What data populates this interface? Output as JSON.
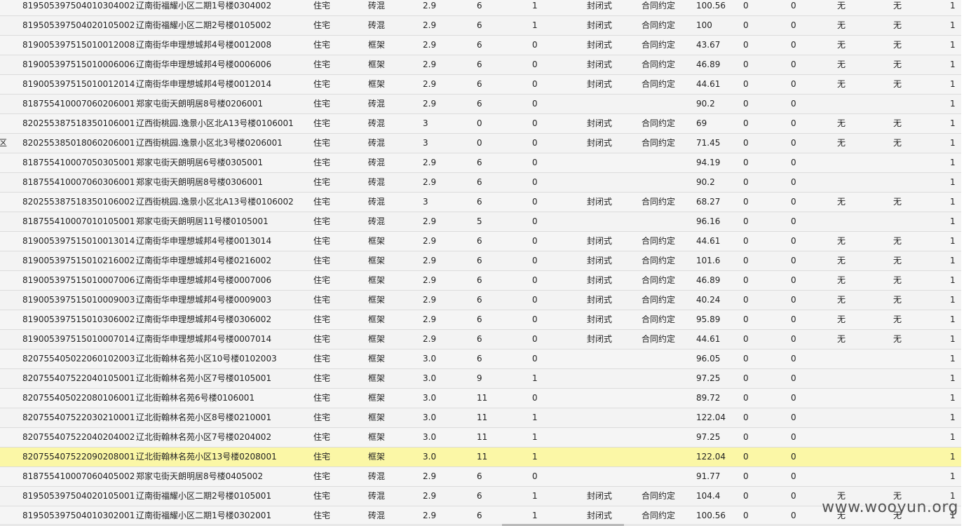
{
  "rows": [
    {
      "edge": "",
      "code": "81950539750401030400​2",
      "addr": "辽南街福耀小区二期1号楼0304002",
      "use": "住宅",
      "struct": "砖混",
      "height": "2.9",
      "floors": "6",
      "flag1": "1",
      "type": "封闭式",
      "term": "合同约定",
      "area": "100.56",
      "z1": "0",
      "z2": "0",
      "n1": "无",
      "n2": "无",
      "last": "1"
    },
    {
      "edge": "",
      "code": "819505397504020105002",
      "addr": "辽南街福耀小区二期2号楼0105002",
      "use": "住宅",
      "struct": "砖混",
      "height": "2.9",
      "floors": "6",
      "flag1": "1",
      "type": "封闭式",
      "term": "合同约定",
      "area": "100",
      "z1": "0",
      "z2": "0",
      "n1": "无",
      "n2": "无",
      "last": "1"
    },
    {
      "edge": "",
      "code": "819005397515010012008",
      "addr": "辽南街华申理想城邦4号楼0012008",
      "use": "住宅",
      "struct": "框架",
      "height": "2.9",
      "floors": "6",
      "flag1": "0",
      "type": "封闭式",
      "term": "合同约定",
      "area": "43.67",
      "z1": "0",
      "z2": "0",
      "n1": "无",
      "n2": "无",
      "last": "1"
    },
    {
      "edge": "",
      "code": "819005397515010006006",
      "addr": "辽南街华申理想城邦4号楼0006006",
      "use": "住宅",
      "struct": "框架",
      "height": "2.9",
      "floors": "6",
      "flag1": "0",
      "type": "封闭式",
      "term": "合同约定",
      "area": "46.89",
      "z1": "0",
      "z2": "0",
      "n1": "无",
      "n2": "无",
      "last": "1"
    },
    {
      "edge": "",
      "code": "819005397515010012014",
      "addr": "辽南街华申理想城邦4号楼0012014",
      "use": "住宅",
      "struct": "框架",
      "height": "2.9",
      "floors": "6",
      "flag1": "0",
      "type": "封闭式",
      "term": "合同约定",
      "area": "44.61",
      "z1": "0",
      "z2": "0",
      "n1": "无",
      "n2": "无",
      "last": "1"
    },
    {
      "edge": "",
      "code": "818755410007060206001",
      "addr": "郑家屯街天朗明居8号楼0206001",
      "use": "住宅",
      "struct": "砖混",
      "height": "2.9",
      "floors": "6",
      "flag1": "0",
      "type": "",
      "term": "",
      "area": "90.2",
      "z1": "0",
      "z2": "0",
      "n1": "",
      "n2": "",
      "last": "1"
    },
    {
      "edge": "",
      "code": "820255387518350106001",
      "addr": "辽西街桃园.逸景小区北A13号楼0106001",
      "use": "住宅",
      "struct": "砖混",
      "height": "3",
      "floors": "0",
      "flag1": "0",
      "type": "封闭式",
      "term": "合同约定",
      "area": "69",
      "z1": "0",
      "z2": "0",
      "n1": "无",
      "n2": "无",
      "last": "1"
    },
    {
      "edge": "区",
      "code": "820255385018060206001",
      "addr": "辽西街桃园.逸景小区北3号楼0206001",
      "use": "住宅",
      "struct": "砖混",
      "height": "3",
      "floors": "0",
      "flag1": "0",
      "type": "封闭式",
      "term": "合同约定",
      "area": "71.45",
      "z1": "0",
      "z2": "0",
      "n1": "无",
      "n2": "无",
      "last": "1"
    },
    {
      "edge": "",
      "code": "818755410007050305001",
      "addr": "郑家屯街天朗明居6号楼0305001",
      "use": "住宅",
      "struct": "砖混",
      "height": "2.9",
      "floors": "6",
      "flag1": "0",
      "type": "",
      "term": "",
      "area": "94.19",
      "z1": "0",
      "z2": "0",
      "n1": "",
      "n2": "",
      "last": "1"
    },
    {
      "edge": "",
      "code": "818755410007060306001",
      "addr": "郑家屯街天朗明居8号楼0306001",
      "use": "住宅",
      "struct": "砖混",
      "height": "2.9",
      "floors": "6",
      "flag1": "0",
      "type": "",
      "term": "",
      "area": "90.2",
      "z1": "0",
      "z2": "0",
      "n1": "",
      "n2": "",
      "last": "1"
    },
    {
      "edge": "",
      "code": "820255387518350106002",
      "addr": "辽西街桃园.逸景小区北A13号楼0106002",
      "use": "住宅",
      "struct": "砖混",
      "height": "3",
      "floors": "6",
      "flag1": "0",
      "type": "封闭式",
      "term": "合同约定",
      "area": "68.27",
      "z1": "0",
      "z2": "0",
      "n1": "无",
      "n2": "无",
      "last": "1"
    },
    {
      "edge": "",
      "code": "818755410007010105001",
      "addr": "郑家屯街天朗明居11号楼0105001",
      "use": "住宅",
      "struct": "砖混",
      "height": "2.9",
      "floors": "5",
      "flag1": "0",
      "type": "",
      "term": "",
      "area": "96.16",
      "z1": "0",
      "z2": "0",
      "n1": "",
      "n2": "",
      "last": "1"
    },
    {
      "edge": "",
      "code": "819005397515010013014",
      "addr": "辽南街华申理想城邦4号楼0013014",
      "use": "住宅",
      "struct": "框架",
      "height": "2.9",
      "floors": "6",
      "flag1": "0",
      "type": "封闭式",
      "term": "合同约定",
      "area": "44.61",
      "z1": "0",
      "z2": "0",
      "n1": "无",
      "n2": "无",
      "last": "1"
    },
    {
      "edge": "",
      "code": "819005397515010216002",
      "addr": "辽南街华申理想城邦4号楼0216002",
      "use": "住宅",
      "struct": "框架",
      "height": "2.9",
      "floors": "6",
      "flag1": "0",
      "type": "封闭式",
      "term": "合同约定",
      "area": "101.6",
      "z1": "0",
      "z2": "0",
      "n1": "无",
      "n2": "无",
      "last": "1"
    },
    {
      "edge": "",
      "code": "819005397515010007006",
      "addr": "辽南街华申理想城邦4号楼0007006",
      "use": "住宅",
      "struct": "框架",
      "height": "2.9",
      "floors": "6",
      "flag1": "0",
      "type": "封闭式",
      "term": "合同约定",
      "area": "46.89",
      "z1": "0",
      "z2": "0",
      "n1": "无",
      "n2": "无",
      "last": "1"
    },
    {
      "edge": "",
      "code": "819005397515010009003",
      "addr": "辽南街华申理想城邦4号楼0009003",
      "use": "住宅",
      "struct": "框架",
      "height": "2.9",
      "floors": "6",
      "flag1": "0",
      "type": "封闭式",
      "term": "合同约定",
      "area": "40.24",
      "z1": "0",
      "z2": "0",
      "n1": "无",
      "n2": "无",
      "last": "1"
    },
    {
      "edge": "",
      "code": "819005397515010306002",
      "addr": "辽南街华申理想城邦4号楼0306002",
      "use": "住宅",
      "struct": "框架",
      "height": "2.9",
      "floors": "6",
      "flag1": "0",
      "type": "封闭式",
      "term": "合同约定",
      "area": "95.89",
      "z1": "0",
      "z2": "0",
      "n1": "无",
      "n2": "无",
      "last": "1"
    },
    {
      "edge": "",
      "code": "819005397515010007014",
      "addr": "辽南街华申理想城邦4号楼0007014",
      "use": "住宅",
      "struct": "框架",
      "height": "2.9",
      "floors": "6",
      "flag1": "0",
      "type": "封闭式",
      "term": "合同约定",
      "area": "44.61",
      "z1": "0",
      "z2": "0",
      "n1": "无",
      "n2": "无",
      "last": "1"
    },
    {
      "edge": "",
      "code": "820755405022060102003",
      "addr": "辽北街翰林名苑小区10号楼0102003",
      "use": "住宅",
      "struct": "框架",
      "height": "3.0",
      "floors": "6",
      "flag1": "0",
      "type": "",
      "term": "",
      "area": "96.05",
      "z1": "0",
      "z2": "0",
      "n1": "",
      "n2": "",
      "last": "1"
    },
    {
      "edge": "",
      "code": "820755407522040105001",
      "addr": "辽北街翰林名苑小区7号楼0105001",
      "use": "住宅",
      "struct": "框架",
      "height": "3.0",
      "floors": "9",
      "flag1": "1",
      "type": "",
      "term": "",
      "area": "97.25",
      "z1": "0",
      "z2": "0",
      "n1": "",
      "n2": "",
      "last": "1"
    },
    {
      "edge": "",
      "code": "820755405022080106001",
      "addr": "辽北街翰林名苑6号楼0106001",
      "use": "住宅",
      "struct": "框架",
      "height": "3.0",
      "floors": "11",
      "flag1": "0",
      "type": "",
      "term": "",
      "area": "89.72",
      "z1": "0",
      "z2": "0",
      "n1": "",
      "n2": "",
      "last": "1"
    },
    {
      "edge": "",
      "code": "820755407522030210001",
      "addr": "辽北街翰林名苑小区8号楼0210001",
      "use": "住宅",
      "struct": "框架",
      "height": "3.0",
      "floors": "11",
      "flag1": "1",
      "type": "",
      "term": "",
      "area": "122.04",
      "z1": "0",
      "z2": "0",
      "n1": "",
      "n2": "",
      "last": "1"
    },
    {
      "edge": "",
      "code": "820755407522040204002",
      "addr": "辽北街翰林名苑小区7号楼0204002",
      "use": "住宅",
      "struct": "框架",
      "height": "3.0",
      "floors": "11",
      "flag1": "1",
      "type": "",
      "term": "",
      "area": "97.25",
      "z1": "0",
      "z2": "0",
      "n1": "",
      "n2": "",
      "last": "1"
    },
    {
      "edge": "",
      "code": "820755407522090208001",
      "addr": "辽北街翰林名苑小区13号楼0208001",
      "use": "住宅",
      "struct": "框架",
      "height": "3.0",
      "floors": "11",
      "flag1": "1",
      "type": "",
      "term": "",
      "area": "122.04",
      "z1": "0",
      "z2": "0",
      "n1": "",
      "n2": "",
      "last": "1",
      "selected": true
    },
    {
      "edge": "",
      "code": "818755410007060405002",
      "addr": "郑家屯街天朗明居8号楼0405002",
      "use": "住宅",
      "struct": "砖混",
      "height": "2.9",
      "floors": "6",
      "flag1": "0",
      "type": "",
      "term": "",
      "area": "91.77",
      "z1": "0",
      "z2": "0",
      "n1": "",
      "n2": "",
      "last": "1"
    },
    {
      "edge": "",
      "code": "819505397504020105001",
      "addr": "辽南街福耀小区二期2号楼0105001",
      "use": "住宅",
      "struct": "砖混",
      "height": "2.9",
      "floors": "6",
      "flag1": "1",
      "type": "封闭式",
      "term": "合同约定",
      "area": "104.4",
      "z1": "0",
      "z2": "0",
      "n1": "无",
      "n2": "无",
      "last": "1"
    },
    {
      "edge": "",
      "code": "819505397504010302001",
      "addr": "辽南街福耀小区二期1号楼0302001",
      "use": "住宅",
      "struct": "砖混",
      "height": "2.9",
      "floors": "6",
      "flag1": "1",
      "type": "封闭式",
      "term": "合同约定",
      "area": "100.56",
      "z1": "0",
      "z2": "0",
      "n1": "无",
      "n2": "无",
      "last": "1"
    }
  ],
  "watermark": "www.wooyun.org"
}
